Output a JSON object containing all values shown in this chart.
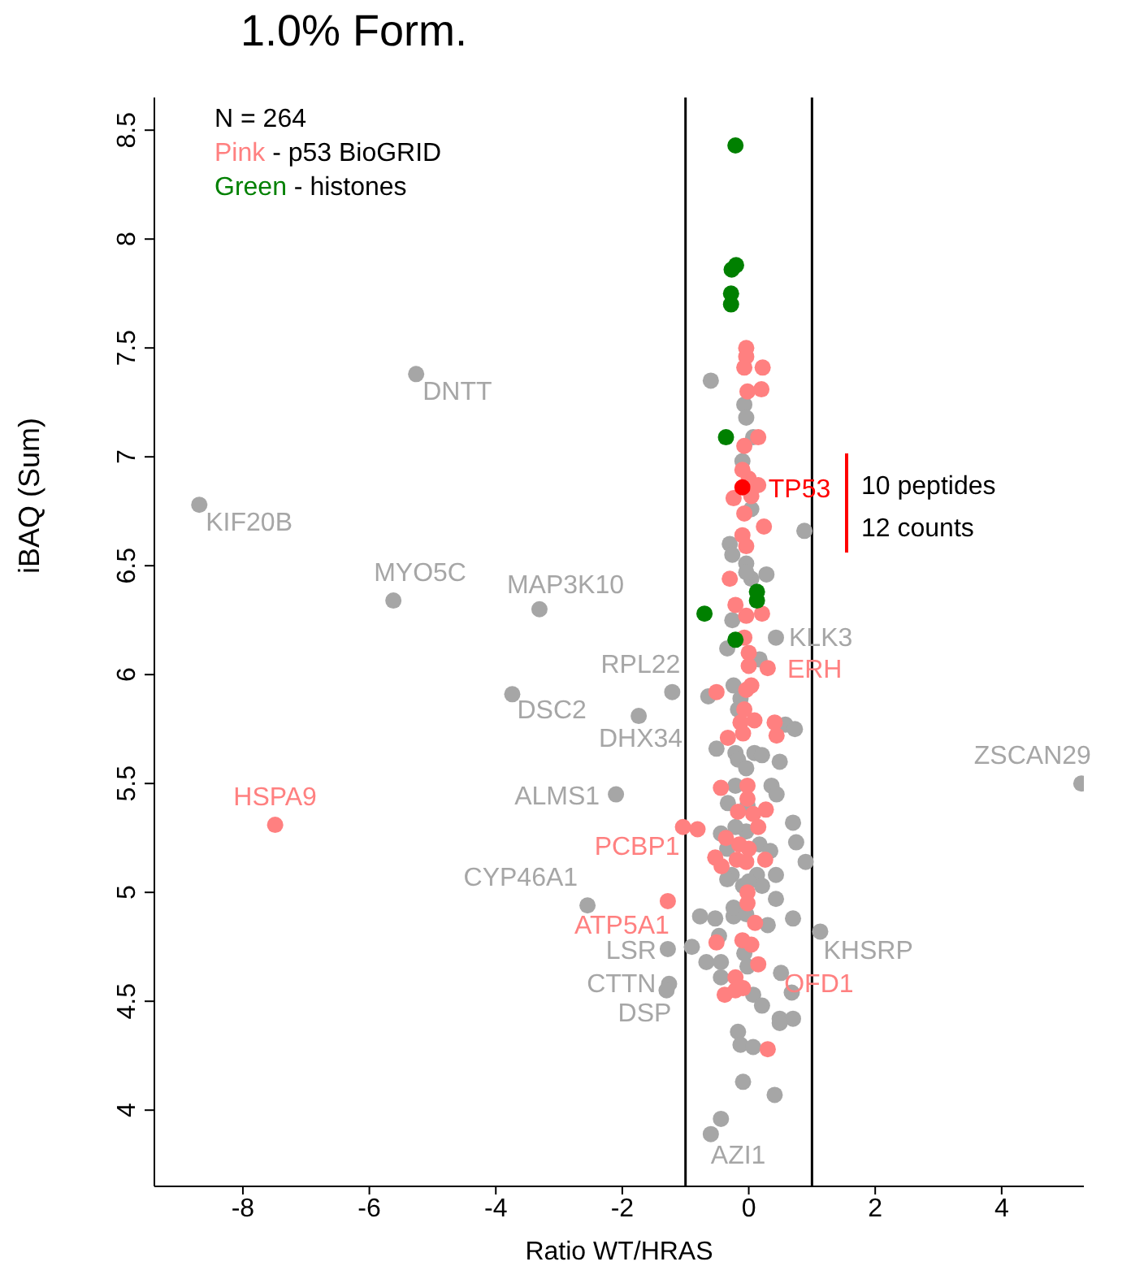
{
  "chart_data": {
    "type": "scatter",
    "title": "1.0% Form.",
    "xlabel": "Ratio WT/HRAS",
    "ylabel": "iBAQ (Sum)",
    "xlim": [
      -9.4,
      5.3
    ],
    "ylim": [
      3.65,
      8.65
    ],
    "xticks": [
      -8,
      -6,
      -4,
      -2,
      0,
      2,
      4
    ],
    "yticks": [
      4,
      4.5,
      5,
      5.5,
      6,
      6.5,
      7,
      7.5,
      8,
      8.5
    ],
    "marker": "circle",
    "ref_lines": [
      {
        "axis": "x",
        "value": -1,
        "color": "#000000"
      },
      {
        "axis": "x",
        "value": 1,
        "color": "#000000"
      }
    ],
    "series": [
      {
        "color": "#a6a6a6",
        "x": [
          -5.26,
          -8.69,
          -5.62,
          -3.31,
          -1.21,
          -3.74,
          -1.74,
          -2.1,
          -2.55,
          -1.28,
          -1.26,
          -1.3,
          0.43,
          5.26,
          1.13,
          -0.6,
          -0.6,
          -0.07,
          -0.04,
          0.07,
          -0.1,
          0.04,
          0.88,
          -0.3,
          -0.26,
          -0.04,
          0.28,
          0.04,
          -0.04,
          -0.26,
          -0.34,
          0.17,
          -0.24,
          -0.64,
          -0.13,
          -0.17,
          0.58,
          0.73,
          -0.51,
          -0.21,
          0.09,
          0.21,
          -0.17,
          0.49,
          -0.04,
          -0.21,
          0.36,
          0.44,
          -0.33,
          -0.02,
          0.7,
          -0.04,
          -0.44,
          0.75,
          0.17,
          -0.21,
          -0.34,
          0.34,
          0.9,
          -0.27,
          0.13,
          0.43,
          -0.09,
          0.21,
          -0.34,
          0,
          0.43,
          -0.77,
          -0.53,
          -0.24,
          -0.24,
          -0.04,
          0.3,
          0.7,
          -0.9,
          -0.47,
          -0.67,
          -0.44,
          -0.07,
          -0.02,
          -0.44,
          0.51,
          0.68,
          0.07,
          0.21,
          0.49,
          0.7,
          0.49,
          -0.17,
          -0.13,
          0.07,
          -0.09,
          0.41,
          -0.44
        ],
        "values": [
          7.38,
          6.78,
          6.34,
          6.3,
          5.92,
          5.91,
          5.81,
          5.45,
          4.94,
          4.74,
          4.58,
          4.55,
          6.17,
          5.5,
          4.82,
          3.89,
          7.35,
          7.24,
          7.18,
          7.09,
          6.98,
          6.76,
          6.66,
          6.6,
          6.55,
          6.51,
          6.46,
          6.44,
          6.47,
          6.25,
          6.12,
          6.07,
          5.95,
          5.9,
          5.89,
          5.84,
          5.77,
          5.75,
          5.66,
          5.64,
          5.64,
          5.63,
          5.61,
          5.6,
          5.57,
          5.49,
          5.49,
          5.45,
          5.41,
          5.4,
          5.32,
          5.28,
          5.27,
          5.23,
          5.22,
          5.3,
          5.2,
          5.19,
          5.14,
          5.08,
          5.08,
          5.08,
          5.03,
          5.03,
          5.06,
          5.05,
          4.97,
          4.89,
          4.88,
          4.89,
          4.93,
          4.9,
          4.85,
          4.88,
          4.75,
          4.8,
          4.68,
          4.68,
          4.72,
          4.66,
          4.61,
          4.63,
          4.54,
          4.53,
          4.48,
          4.42,
          4.42,
          4.4,
          4.36,
          4.3,
          4.29,
          4.13,
          4.07,
          3.96
        ]
      },
      {
        "color": "#ff8080",
        "x": [
          -7.49,
          -1.04,
          -0.81,
          -1.28,
          0.3,
          -0.04,
          -0.04,
          -0.07,
          0.22,
          -0.02,
          0.2,
          0.15,
          -0.07,
          -0.1,
          0,
          0.15,
          -0.24,
          0.04,
          -0.07,
          0.24,
          -0.1,
          -0.04,
          -0.3,
          -0.21,
          -0.04,
          0.21,
          -0.07,
          0,
          0,
          -0.51,
          -0.04,
          0.04,
          -0.07,
          -0.13,
          0.09,
          0.41,
          0.44,
          -0.33,
          -0.09,
          -0.44,
          -0.02,
          -0.02,
          -0.17,
          0.27,
          0.07,
          0.15,
          -0.36,
          -0.15,
          0,
          -0.53,
          -0.19,
          0.26,
          -0.43,
          -0.04,
          -0.02,
          -0.02,
          0.1,
          -0.51,
          -0.1,
          0.04,
          0.15,
          -0.21,
          -0.09,
          -0.21,
          -0.38,
          0.3
        ],
        "values": [
          5.31,
          5.3,
          5.29,
          4.96,
          6.03,
          7.5,
          7.46,
          7.41,
          7.41,
          7.3,
          7.31,
          7.09,
          7.05,
          6.94,
          6.9,
          6.87,
          6.81,
          6.82,
          6.74,
          6.68,
          6.64,
          6.59,
          6.44,
          6.32,
          6.27,
          6.28,
          6.17,
          6.1,
          6.04,
          5.92,
          5.93,
          5.95,
          5.84,
          5.78,
          5.79,
          5.78,
          5.72,
          5.71,
          5.73,
          5.48,
          5.49,
          5.43,
          5.37,
          5.38,
          5.36,
          5.3,
          5.25,
          5.22,
          5.2,
          5.16,
          5.15,
          5.15,
          5.12,
          5.14,
          5,
          4.95,
          4.86,
          4.77,
          4.78,
          4.76,
          4.67,
          4.61,
          4.56,
          4.55,
          4.53,
          4.28
        ]
      },
      {
        "color": "#008000",
        "x": [
          -0.21,
          -0.2,
          -0.27,
          -0.28,
          -0.28,
          -0.36,
          0.13,
          0.13,
          -0.7,
          -0.21
        ],
        "values": [
          8.43,
          7.88,
          7.86,
          7.75,
          7.7,
          7.09,
          6.38,
          6.34,
          6.28,
          6.16
        ]
      },
      {
        "color": "#ff0000",
        "x": [
          -0.1
        ],
        "values": [
          6.86
        ]
      }
    ],
    "annotations": [
      "N = 264",
      "Pink - p53 BioGRID",
      "Green - histones",
      "10 peptides",
      "12 counts",
      {
        "text": "DNTT",
        "x": -5.26,
        "y": 7.38
      },
      {
        "text": "KIF20B",
        "x": -8.69,
        "y": 6.78
      },
      {
        "text": "MYO5C",
        "x": -5.62,
        "y": 6.34
      },
      {
        "text": "MAP3K10",
        "x": -3.31,
        "y": 6.3
      },
      {
        "text": "RPL22",
        "x": -1.21,
        "y": 5.92
      },
      {
        "text": "DSC2",
        "x": -3.74,
        "y": 5.91
      },
      {
        "text": "DHX34",
        "x": -1.74,
        "y": 5.81
      },
      {
        "text": "ALMS1",
        "x": -2.1,
        "y": 5.45
      },
      {
        "text": "HSPA9",
        "x": -7.49,
        "y": 5.31
      },
      {
        "text": "PCBP1",
        "x": -1.04,
        "y": 5.3
      },
      {
        "text": "CYP46A1",
        "x": -2.55,
        "y": 4.94
      },
      {
        "text": "ATP5A1",
        "x": -1.28,
        "y": 4.96
      },
      {
        "text": "LSR",
        "x": -1.28,
        "y": 4.74
      },
      {
        "text": "CTTN",
        "x": -1.26,
        "y": 4.58
      },
      {
        "text": "DSP",
        "x": -1.3,
        "y": 4.55
      },
      {
        "text": "KLK3",
        "x": 0.43,
        "y": 6.17
      },
      {
        "text": "ERH",
        "x": 0.3,
        "y": 6.03
      },
      {
        "text": "ZSCAN29",
        "x": 5.26,
        "y": 5.5
      },
      {
        "text": "KHSRP",
        "x": 1.13,
        "y": 4.82
      },
      {
        "text": "OFD1",
        "x": 0.15,
        "y": 4.67
      },
      {
        "text": "AZI1",
        "x": -0.6,
        "y": 3.89
      },
      {
        "text": "TP53",
        "x": -0.1,
        "y": 6.86
      }
    ]
  }
}
